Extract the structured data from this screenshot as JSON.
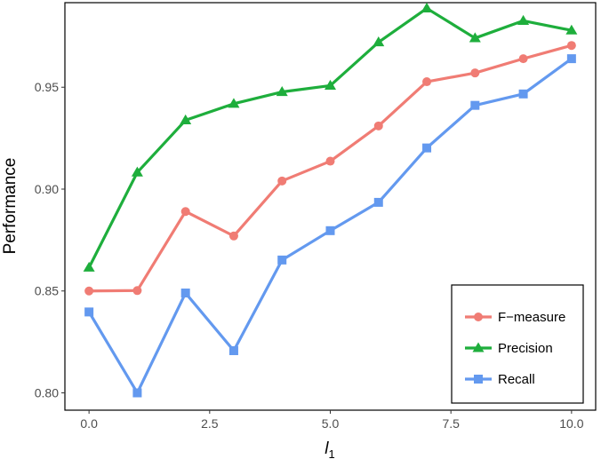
{
  "chart_data": {
    "type": "line",
    "title": "",
    "xlabel": "l",
    "xlabel_subscript": "1",
    "ylabel": "Performance",
    "x": [
      0,
      1,
      2,
      3,
      4,
      5,
      6,
      7,
      8,
      9,
      10
    ],
    "xlim": [
      -0.5,
      10.5
    ],
    "ylim": [
      0.7915,
      0.9915
    ],
    "xticks": [
      0,
      2.5,
      5,
      7.5,
      10
    ],
    "xtick_labels": [
      "0.0",
      "2.5",
      "5.0",
      "7.5",
      "10.0"
    ],
    "yticks": [
      0.8,
      0.85,
      0.9,
      0.95
    ],
    "ytick_labels": [
      "0.80",
      "0.85",
      "0.90",
      "0.95"
    ],
    "grid": false,
    "legend_position": "bottom-right",
    "series": [
      {
        "name": "F−measure",
        "color": "#F07C74",
        "marker": "circle",
        "values": [
          0.85,
          0.8502,
          0.889,
          0.877,
          0.904,
          0.9137,
          0.931,
          0.9527,
          0.957,
          0.964,
          0.9705
        ]
      },
      {
        "name": "Precision",
        "color": "#1EAE3C",
        "marker": "triangle",
        "values": [
          0.8615,
          0.9082,
          0.9338,
          0.9419,
          0.9477,
          0.9508,
          0.9721,
          0.9887,
          0.9741,
          0.9826,
          0.9779
        ]
      },
      {
        "name": "Recall",
        "color": "#6399EF",
        "marker": "square",
        "values": [
          0.8397,
          0.8,
          0.849,
          0.8207,
          0.8652,
          0.8796,
          0.8935,
          0.9202,
          0.9411,
          0.9467,
          0.964
        ]
      }
    ]
  }
}
